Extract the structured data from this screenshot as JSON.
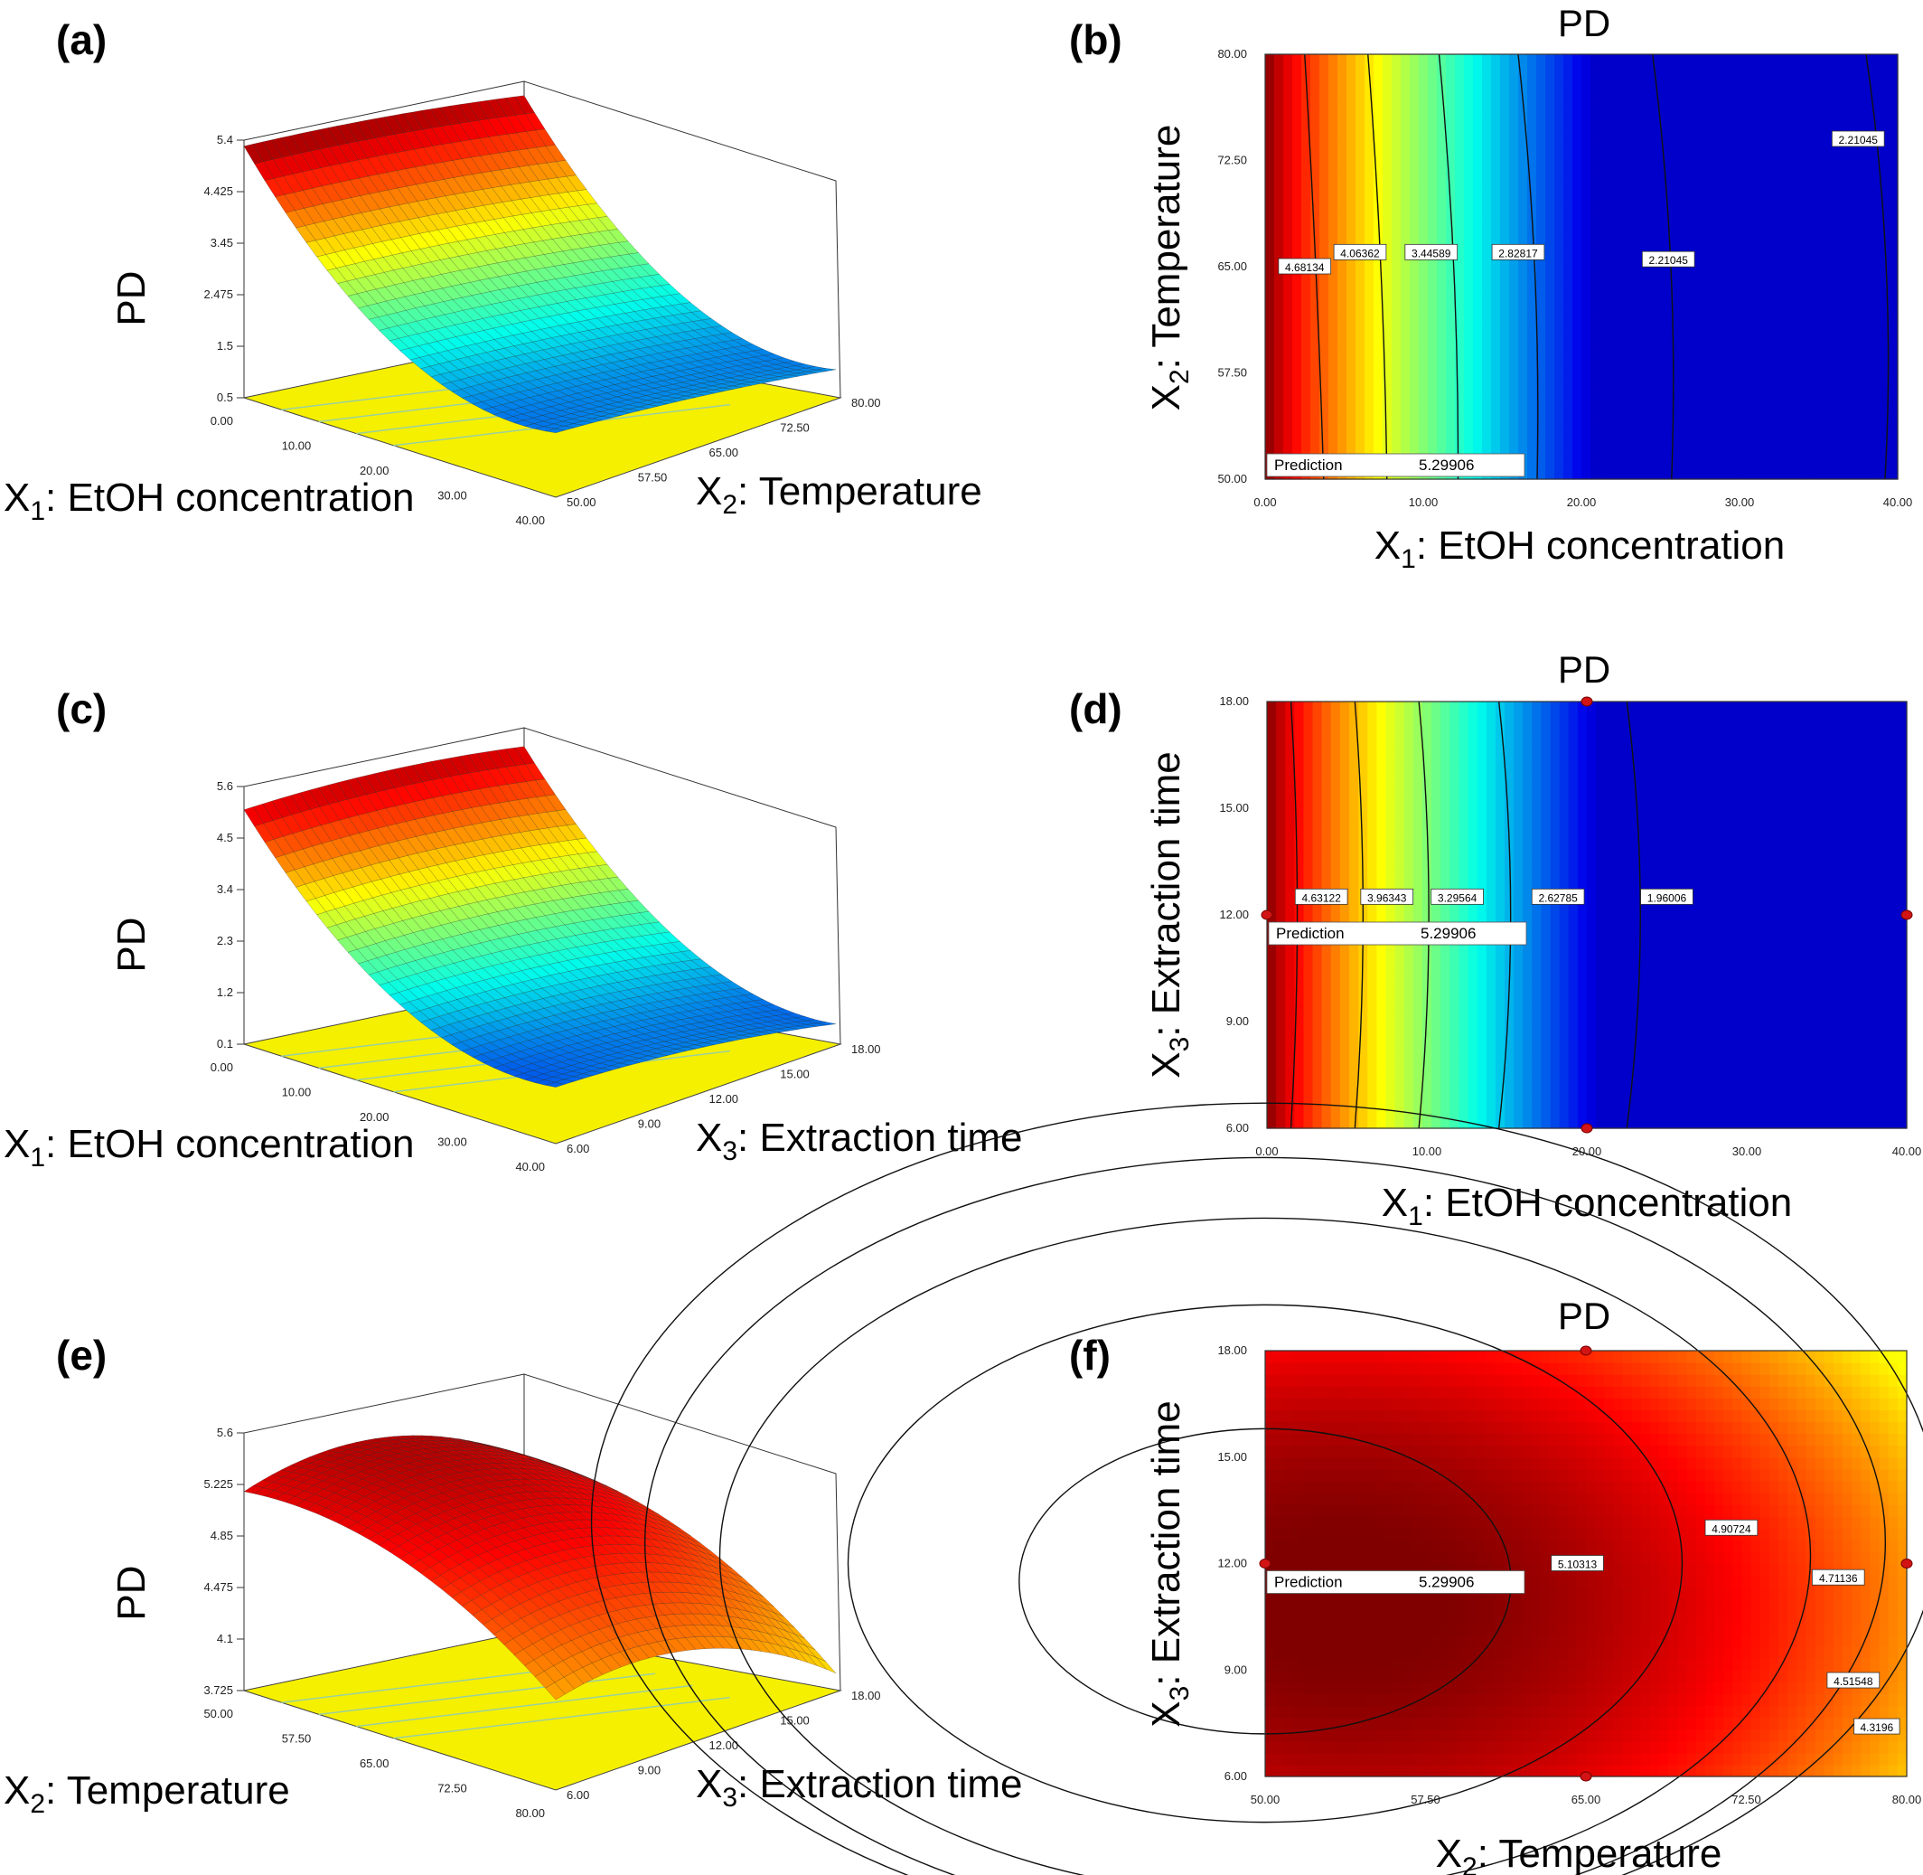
{
  "chart_data": [
    {
      "panel": "(a)",
      "type": "surface3d",
      "zlabel": "PD",
      "xlabel_main": "X",
      "xlabel_sub": "1",
      "xlabel_rest": ": EtOH concentration",
      "ylabel_main": "X",
      "ylabel_sub": "2",
      "ylabel_rest": ": Temperature",
      "x_ticks": [
        "0.00",
        "10.00",
        "20.00",
        "30.00",
        "40.00"
      ],
      "y_ticks": [
        "50.00",
        "57.50",
        "65.00",
        "72.50",
        "80.00"
      ],
      "z_ticks": [
        "0.5",
        "1.5",
        "2.475",
        "3.45",
        "4.425",
        "5.4"
      ],
      "z_range": [
        0.5,
        5.4
      ],
      "surface": {
        "x_range": [
          0,
          40
        ],
        "y_range": [
          50,
          80
        ],
        "model": "etoh_temp"
      }
    },
    {
      "panel": "(b)",
      "type": "contour",
      "title": "PD",
      "xlabel_main": "X",
      "xlabel_sub": "1",
      "xlabel_rest": ": EtOH concentration",
      "ylabel_main": "X",
      "ylabel_sub": "2",
      "ylabel_rest": ": Temperature",
      "x_ticks": [
        "0.00",
        "10.00",
        "20.00",
        "30.00",
        "40.00"
      ],
      "y_ticks": [
        "50.00",
        "57.50",
        "65.00",
        "72.50",
        "80.00"
      ],
      "x_range": [
        0,
        40
      ],
      "y_range": [
        50,
        80
      ],
      "contour_levels": [
        {
          "label": "4.68134",
          "x": 2.5,
          "y": 65
        },
        {
          "label": "4.06362",
          "x": 6.0,
          "y": 66
        },
        {
          "label": "3.44589",
          "x": 10.5,
          "y": 66
        },
        {
          "label": "2.82817",
          "x": 16.0,
          "y": 66
        },
        {
          "label": "2.21045",
          "x": 25.5,
          "y": 65.5
        },
        {
          "label": "2.21045",
          "x": 37.5,
          "y": 74
        }
      ],
      "prediction": {
        "label": "Prediction",
        "value": "5.29906"
      },
      "design_points": []
    },
    {
      "panel": "(c)",
      "type": "surface3d",
      "zlabel": "PD",
      "xlabel_main": "X",
      "xlabel_sub": "1",
      "xlabel_rest": ": EtOH concentration",
      "ylabel_main": "X",
      "ylabel_sub": "3",
      "ylabel_rest": ": Extraction time",
      "x_ticks": [
        "0.00",
        "10.00",
        "20.00",
        "30.00",
        "40.00"
      ],
      "y_ticks": [
        "6.00",
        "9.00",
        "12.00",
        "15.00",
        "18.00"
      ],
      "z_ticks": [
        "0.1",
        "1.2",
        "2.3",
        "3.4",
        "4.5",
        "5.6"
      ],
      "z_range": [
        0.1,
        5.6
      ],
      "surface": {
        "x_range": [
          0,
          40
        ],
        "y_range": [
          6,
          18
        ],
        "model": "etoh_time"
      }
    },
    {
      "panel": "(d)",
      "type": "contour",
      "title": "PD",
      "xlabel_main": "X",
      "xlabel_sub": "1",
      "xlabel_rest": ": EtOH concentration",
      "ylabel_main": "X",
      "ylabel_sub": "3",
      "ylabel_rest": ": Extraction time",
      "x_ticks": [
        "0.00",
        "10.00",
        "20.00",
        "30.00",
        "40.00"
      ],
      "y_ticks": [
        "6.00",
        "9.00",
        "12.00",
        "15.00",
        "18.00"
      ],
      "x_range": [
        0,
        40
      ],
      "y_range": [
        6,
        18
      ],
      "contour_levels": [
        {
          "label": "4.63122",
          "x": 3.4,
          "y": 12.5
        },
        {
          "label": "3.96343",
          "x": 7.5,
          "y": 12.5
        },
        {
          "label": "3.29564",
          "x": 11.9,
          "y": 12.5
        },
        {
          "label": "2.62785",
          "x": 18.2,
          "y": 12.5
        },
        {
          "label": "1.96006",
          "x": 25.0,
          "y": 12.5
        }
      ],
      "prediction": {
        "label": "Prediction",
        "value": "5.29906"
      },
      "design_points": [
        [
          0,
          12
        ],
        [
          20,
          18
        ],
        [
          20,
          6
        ],
        [
          40,
          12
        ]
      ]
    },
    {
      "panel": "(e)",
      "type": "surface3d",
      "zlabel": "PD",
      "xlabel_main": "X",
      "xlabel_sub": "2",
      "xlabel_rest": ": Temperature",
      "ylabel_main": "X",
      "ylabel_sub": "3",
      "ylabel_rest": ": Extraction time",
      "x_ticks": [
        "50.00",
        "57.50",
        "65.00",
        "72.50",
        "80.00"
      ],
      "y_ticks": [
        "6.00",
        "9.00",
        "12.00",
        "15.00",
        "18.00"
      ],
      "z_ticks": [
        "3.725",
        "4.1",
        "4.475",
        "4.85",
        "5.225",
        "5.6"
      ],
      "z_range": [
        3.725,
        5.6
      ],
      "surface": {
        "x_range": [
          50,
          80
        ],
        "y_range": [
          6,
          18
        ],
        "model": "temp_time"
      }
    },
    {
      "panel": "(f)",
      "type": "contour",
      "title": "PD",
      "xlabel_main": "X",
      "xlabel_sub": "2",
      "xlabel_rest": ": Temperature",
      "ylabel_main": "X",
      "ylabel_sub": "3",
      "ylabel_rest": ": Extraction time",
      "x_ticks": [
        "50.00",
        "57.50",
        "65.00",
        "72.50",
        "80.00"
      ],
      "y_ticks": [
        "6.00",
        "9.00",
        "12.00",
        "15.00",
        "18.00"
      ],
      "x_range": [
        50,
        80
      ],
      "y_range": [
        6,
        18
      ],
      "contour_levels": [
        {
          "label": "5.10313",
          "x": 64.6,
          "y": 12.0
        },
        {
          "label": "4.90724",
          "x": 71.8,
          "y": 13.0
        },
        {
          "label": "4.71136",
          "x": 76.8,
          "y": 11.6
        },
        {
          "label": "4.51548",
          "x": 77.5,
          "y": 8.7
        },
        {
          "label": "4.3196",
          "x": 78.6,
          "y": 7.4
        }
      ],
      "prediction": {
        "label": "Prediction",
        "value": "5.29906"
      },
      "design_points": [
        [
          50,
          12
        ],
        [
          65,
          18
        ],
        [
          65,
          6
        ],
        [
          80,
          12
        ]
      ]
    }
  ]
}
